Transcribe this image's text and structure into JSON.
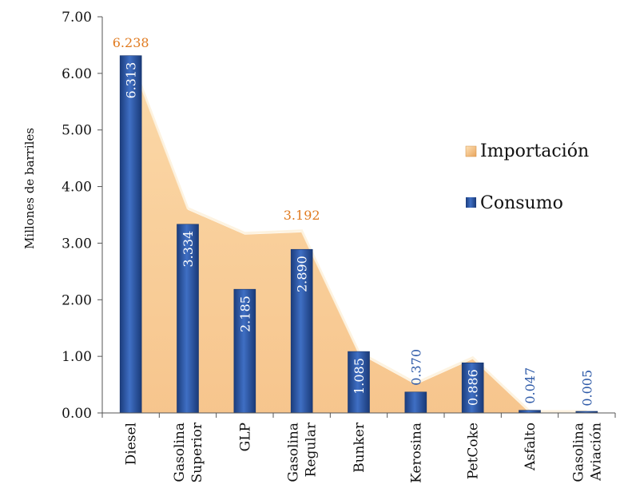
{
  "chart_data": {
    "type": "bar",
    "title": "",
    "xlabel": "",
    "ylabel": "Millones de barriles",
    "ylim": [
      0,
      7
    ],
    "yticks": [
      "0.00",
      "1.00",
      "2.00",
      "3.00",
      "4.00",
      "5.00",
      "6.00",
      "7.00"
    ],
    "categories": [
      [
        "Diesel"
      ],
      [
        "Gasolina",
        "Superior"
      ],
      [
        "GLP"
      ],
      [
        "Gasolina",
        "Regular"
      ],
      [
        "Bunker"
      ],
      [
        "Kerosina"
      ],
      [
        "PetCoke"
      ],
      [
        "Asfalto"
      ],
      [
        "Gasolina",
        "Aviación"
      ]
    ],
    "series": [
      {
        "name": "Importación",
        "type": "area",
        "color": "#f7c98f",
        "values": [
          6.238,
          3.59,
          3.15,
          3.192,
          1.05,
          0.5,
          0.95,
          0.0,
          0.0
        ],
        "labels": [
          "6.238",
          "",
          "",
          "3.192",
          "",
          "",
          "",
          "",
          ""
        ],
        "label_color": "#e07a1f"
      },
      {
        "name": "Consumo",
        "type": "bar",
        "color": "#2e5aa8",
        "values": [
          6.313,
          3.334,
          2.185,
          2.89,
          1.085,
          0.37,
          0.886,
          0.047,
          0.005
        ],
        "labels": [
          "6.313",
          "3.334",
          "2.185",
          "2.890",
          "1.085",
          "0.370",
          "0.886",
          "0.047",
          "0.005"
        ],
        "label_color_inside": "#ffffff",
        "label_color_outside": "#2e5aa8"
      }
    ],
    "legend": {
      "position": "right",
      "entries": [
        "Importación",
        "Consumo"
      ]
    },
    "grid": false
  }
}
